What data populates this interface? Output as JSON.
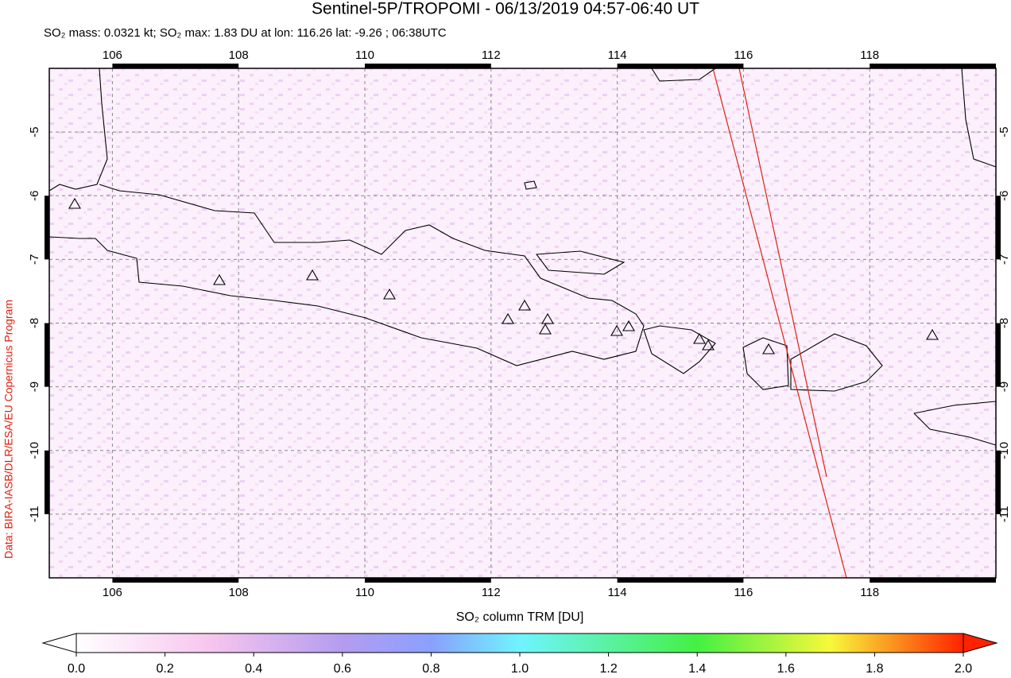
{
  "chart_data": {
    "type": "map",
    "title": "Sentinel-5P/TROPOMI - 06/13/2019 04:57-06:40 UT",
    "subtitle": "SO₂ mass: 0.0321 kt; SO₂ max: 1.83 DU at lon: 116.26 lat: -9.26 ; 06:38UTC",
    "credit": "Data: BIRA-IASB/DLR/ESA/EU Copernicus Program",
    "xlim": [
      105,
      120
    ],
    "ylim": [
      -12,
      -4
    ],
    "xticks": [
      106,
      108,
      110,
      112,
      114,
      116,
      118
    ],
    "yticks": [
      -5,
      -6,
      -7,
      -8,
      -9,
      -10,
      -11
    ],
    "grid": true,
    "colorbar": {
      "label": "SO₂ column TRM [DU]",
      "lim": [
        0,
        2
      ],
      "ticks": [
        {
          "value": 0,
          "label": "0.0"
        },
        {
          "value": 0.2,
          "label": "0.2"
        },
        {
          "value": 0.4,
          "label": "0.4"
        },
        {
          "value": 0.6,
          "label": "0.6"
        },
        {
          "value": 0.8,
          "label": "0.8"
        },
        {
          "value": 1,
          "label": "1.0"
        },
        {
          "value": 1.2,
          "label": "1.2"
        },
        {
          "value": 1.4,
          "label": "1.4"
        },
        {
          "value": 1.6,
          "label": "1.6"
        },
        {
          "value": 1.8,
          "label": "1.8"
        },
        {
          "value": 2,
          "label": "2.0"
        }
      ],
      "colors": [
        {
          "value": 0,
          "color": "#ffffff"
        },
        {
          "value": 0.3,
          "color": "#f7c6ee"
        },
        {
          "value": 0.6,
          "color": "#b49cf0"
        },
        {
          "value": 0.8,
          "color": "#8aa0ff"
        },
        {
          "value": 1,
          "color": "#6ff4ff"
        },
        {
          "value": 1.4,
          "color": "#44f044"
        },
        {
          "value": 1.7,
          "color": "#f8f83a"
        },
        {
          "value": 2,
          "color": "#ff2200"
        }
      ]
    }
  }
}
